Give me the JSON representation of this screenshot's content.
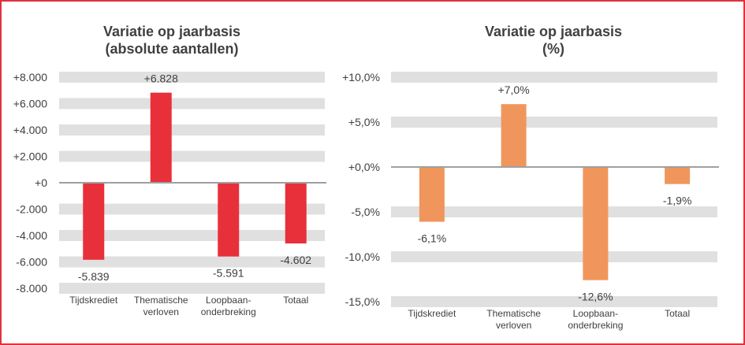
{
  "chart_data": [
    {
      "type": "bar",
      "title": [
        "Variatie op jaarbasis",
        "(absolute aantallen)"
      ],
      "xlabel": "",
      "ylabel": "",
      "categories": [
        [
          "Tijdskrediet"
        ],
        [
          "Thematische",
          "verloven"
        ],
        [
          "Loopbaan-",
          "onderbreking"
        ],
        [
          "Totaal"
        ]
      ],
      "values": [
        -5839,
        6828,
        -5591,
        -4602
      ],
      "value_labels": [
        "-5.839",
        "+6.828",
        "-5.591",
        "-4.602"
      ],
      "ylim": [
        -8000,
        8000
      ],
      "yticks": [
        8000,
        6000,
        4000,
        2000,
        0,
        -2000,
        -4000,
        -6000,
        -8000
      ],
      "ytick_labels": [
        "+8.000",
        "+6.000",
        "+4.000",
        "+2.000",
        "+0",
        "-2.000",
        "-4.000",
        "-6.000",
        "-8.000"
      ],
      "grid": true,
      "legend": "none",
      "color": "#e8303a"
    },
    {
      "type": "bar",
      "title": [
        "Variatie op jaarbasis",
        "(%)"
      ],
      "xlabel": "",
      "ylabel": "",
      "categories": [
        [
          "Tijdskrediet"
        ],
        [
          "Thematische",
          "verloven"
        ],
        [
          "Loopbaan-",
          "onderbreking"
        ],
        [
          "Totaal"
        ]
      ],
      "values": [
        -6.1,
        7.0,
        -12.6,
        -1.9
      ],
      "value_labels": [
        "-6,1%",
        "+7,0%",
        "-12,6%",
        "-1,9%"
      ],
      "ylim": [
        -15,
        10
      ],
      "yticks": [
        10,
        5,
        0,
        -5,
        -10,
        -15
      ],
      "ytick_labels": [
        "+10,0%",
        "+5,0%",
        "+0,0%",
        "-5,0%",
        "-10,0%",
        "-15,0%"
      ],
      "grid": true,
      "legend": "none",
      "color": "#f0965c"
    }
  ],
  "colors": {
    "frame": "#e0323c",
    "gridband": "#e0e0e0",
    "zero_line": "#a0a0a0",
    "text": "#404040"
  }
}
